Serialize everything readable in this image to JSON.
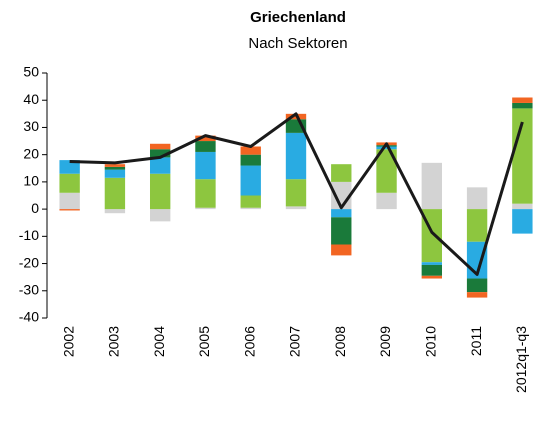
{
  "chart_data": {
    "type": "bar",
    "stacked": true,
    "title": "Griechenland",
    "subtitle": "Nach Sektoren",
    "categories": [
      "2002",
      "2003",
      "2004",
      "2005",
      "2006",
      "2007",
      "2008",
      "2009",
      "2010",
      "2011",
      "2012q1-q3"
    ],
    "series": [
      {
        "color": "#d3d3d3",
        "values": [
          6,
          -1.5,
          -4.5,
          0.5,
          0.5,
          1,
          10,
          6,
          17,
          8,
          2
        ]
      },
      {
        "color": "#8dc63f",
        "values": [
          7,
          11.5,
          13,
          10.5,
          4.5,
          10,
          6.5,
          16,
          -19.5,
          -12,
          35
        ]
      },
      {
        "color": "#29abe2",
        "values": [
          5,
          3,
          6,
          10,
          11,
          17,
          -3,
          1,
          -1,
          -13.5,
          -9
        ]
      },
      {
        "color": "#1a7a3a",
        "values": [
          0,
          1,
          3,
          4,
          4,
          5,
          -10,
          0.5,
          -4,
          -5,
          2
        ]
      },
      {
        "color": "#f26522",
        "values": [
          -0.5,
          1,
          2,
          2,
          3,
          2,
          -4,
          1,
          -1,
          -2,
          2
        ]
      }
    ],
    "line": {
      "color": "#1a1a1a",
      "values": [
        17.5,
        17,
        19,
        27,
        23,
        35,
        0.5,
        24,
        -8.5,
        -24,
        32
      ]
    },
    "ylim": [
      -40,
      50
    ],
    "yticks": [
      -40,
      -30,
      -20,
      -10,
      0,
      10,
      20,
      30,
      40,
      50
    ]
  }
}
